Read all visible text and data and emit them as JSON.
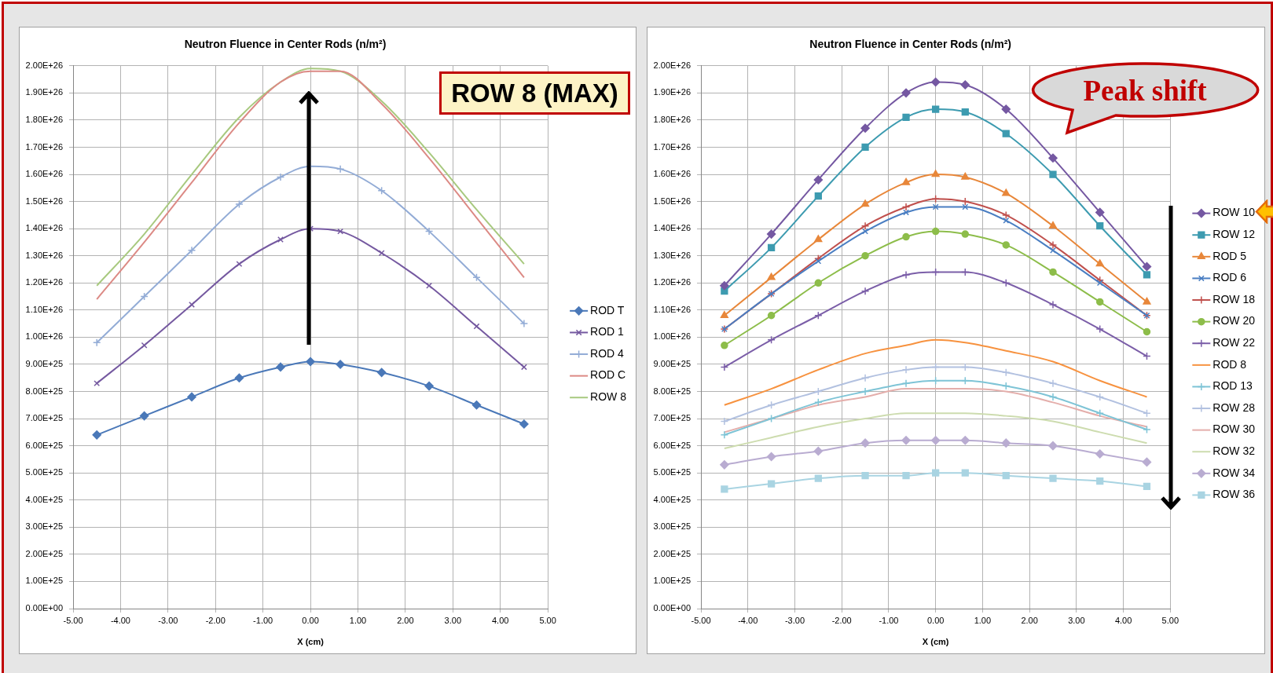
{
  "chart_data": [
    {
      "type": "line",
      "title": "Neutron Fluence in Center Rods (n/m²)",
      "xlabel": "X (cm)",
      "xlim": [
        -5,
        5
      ],
      "xticks": [
        {
          "value": -5,
          "label": "-5.00"
        },
        {
          "value": -4,
          "label": "-4.00"
        },
        {
          "value": -3,
          "label": "-3.00"
        },
        {
          "value": -2,
          "label": "-2.00"
        },
        {
          "value": -1,
          "label": "-1.00"
        },
        {
          "value": 0,
          "label": "0.00"
        },
        {
          "value": 1,
          "label": "1.00"
        },
        {
          "value": 2,
          "label": "2.00"
        },
        {
          "value": 3,
          "label": "3.00"
        },
        {
          "value": 4,
          "label": "4.00"
        },
        {
          "value": 5,
          "label": "5.00"
        }
      ],
      "ylim": [
        0,
        2e+26
      ],
      "yticks": [
        {
          "value": 0,
          "label": "0.00E+00"
        },
        {
          "value": 1e+25,
          "label": "1.00E+25"
        },
        {
          "value": 2e+25,
          "label": "2.00E+25"
        },
        {
          "value": 3e+25,
          "label": "3.00E+25"
        },
        {
          "value": 4e+25,
          "label": "4.00E+25"
        },
        {
          "value": 5e+25,
          "label": "5.00E+25"
        },
        {
          "value": 6e+25,
          "label": "6.00E+25"
        },
        {
          "value": 7e+25,
          "label": "7.00E+25"
        },
        {
          "value": 8e+25,
          "label": "8.00E+25"
        },
        {
          "value": 9e+25,
          "label": "9.00E+25"
        },
        {
          "value": 1e+26,
          "label": "1.00E+26"
        },
        {
          "value": 1.1e+26,
          "label": "1.10E+26"
        },
        {
          "value": 1.2e+26,
          "label": "1.20E+26"
        },
        {
          "value": 1.3e+26,
          "label": "1.30E+26"
        },
        {
          "value": 1.4e+26,
          "label": "1.40E+26"
        },
        {
          "value": 1.5e+26,
          "label": "1.50E+26"
        },
        {
          "value": 1.6e+26,
          "label": "1.60E+26"
        },
        {
          "value": 1.7e+26,
          "label": "1.70E+26"
        },
        {
          "value": 1.8e+26,
          "label": "1.80E+26"
        },
        {
          "value": 1.9e+26,
          "label": "1.90E+26"
        },
        {
          "value": 2e+26,
          "label": "2.00E+26"
        }
      ],
      "grid": true,
      "legend": "right",
      "annotations": [
        "ROW 8 (MAX)"
      ],
      "x": [
        -4.5,
        -3.5,
        -2.5,
        -1.5,
        -0.63,
        0,
        0.63,
        1.5,
        2.5,
        3.5,
        4.5
      ],
      "series": [
        {
          "name": "ROD T",
          "color": "#4a78b8",
          "marker": "diamond",
          "values": [
            6.4e+25,
            7.1e+25,
            7.8e+25,
            8.5e+25,
            8.9e+25,
            9.1e+25,
            9e+25,
            8.7e+25,
            8.2e+25,
            7.5e+25,
            6.8e+25
          ]
        },
        {
          "name": "ROD 1",
          "color": "#7559a0",
          "marker": "x",
          "values": [
            8.3e+25,
            9.7e+25,
            1.12e+26,
            1.27e+26,
            1.36e+26,
            1.4e+26,
            1.39e+26,
            1.31e+26,
            1.19e+26,
            1.04e+26,
            8.9e+25
          ]
        },
        {
          "name": "ROD 4",
          "color": "#93acd6",
          "marker": "cross",
          "values": [
            9.8e+25,
            1.15e+26,
            1.32e+26,
            1.49e+26,
            1.59e+26,
            1.63e+26,
            1.62e+26,
            1.54e+26,
            1.39e+26,
            1.22e+26,
            1.05e+26
          ]
        },
        {
          "name": "ROD C",
          "color": "#dc8a85",
          "marker": "none",
          "values": [
            1.14e+26,
            1.35e+26,
            1.57e+26,
            1.79e+26,
            1.94e+26,
            1.98e+26,
            1.98e+26,
            1.86e+26,
            1.66e+26,
            1.44e+26,
            1.22e+26
          ]
        },
        {
          "name": "ROW 8",
          "color": "#a8c97f",
          "marker": "none",
          "values": [
            1.19e+26,
            1.38e+26,
            1.6e+26,
            1.81e+26,
            1.94e+26,
            1.99e+26,
            1.98e+26,
            1.87e+26,
            1.68e+26,
            1.47e+26,
            1.27e+26
          ]
        }
      ]
    },
    {
      "type": "line",
      "title": "Neutron Fluence in Center Rods (n/m²)",
      "xlabel": "X (cm)",
      "xlim": [
        -5,
        5
      ],
      "xticks": [
        {
          "value": -5,
          "label": "-5.00"
        },
        {
          "value": -4,
          "label": "-4.00"
        },
        {
          "value": -3,
          "label": "-3.00"
        },
        {
          "value": -2,
          "label": "-2.00"
        },
        {
          "value": -1,
          "label": "-1.00"
        },
        {
          "value": 0,
          "label": "0.00"
        },
        {
          "value": 1,
          "label": "1.00"
        },
        {
          "value": 2,
          "label": "2.00"
        },
        {
          "value": 3,
          "label": "3.00"
        },
        {
          "value": 4,
          "label": "4.00"
        },
        {
          "value": 5,
          "label": "5.00"
        }
      ],
      "ylim": [
        0,
        2e+26
      ],
      "yticks": [
        {
          "value": 0,
          "label": "0.00E+00"
        },
        {
          "value": 1e+25,
          "label": "1.00E+25"
        },
        {
          "value": 2e+25,
          "label": "2.00E+25"
        },
        {
          "value": 3e+25,
          "label": "3.00E+25"
        },
        {
          "value": 4e+25,
          "label": "4.00E+25"
        },
        {
          "value": 5e+25,
          "label": "5.00E+25"
        },
        {
          "value": 6e+25,
          "label": "6.00E+25"
        },
        {
          "value": 7e+25,
          "label": "7.00E+25"
        },
        {
          "value": 8e+25,
          "label": "8.00E+25"
        },
        {
          "value": 9e+25,
          "label": "9.00E+25"
        },
        {
          "value": 1e+26,
          "label": "1.00E+26"
        },
        {
          "value": 1.1e+26,
          "label": "1.10E+26"
        },
        {
          "value": 1.2e+26,
          "label": "1.20E+26"
        },
        {
          "value": 1.3e+26,
          "label": "1.30E+26"
        },
        {
          "value": 1.4e+26,
          "label": "1.40E+26"
        },
        {
          "value": 1.5e+26,
          "label": "1.50E+26"
        },
        {
          "value": 1.6e+26,
          "label": "1.60E+26"
        },
        {
          "value": 1.7e+26,
          "label": "1.70E+26"
        },
        {
          "value": 1.8e+26,
          "label": "1.80E+26"
        },
        {
          "value": 1.9e+26,
          "label": "1.90E+26"
        },
        {
          "value": 2e+26,
          "label": "2.00E+26"
        }
      ],
      "grid": true,
      "legend": "right",
      "annotations": [
        "Peak shift"
      ],
      "x": [
        -4.5,
        -3.5,
        -2.5,
        -1.5,
        -0.63,
        0,
        0.63,
        1.5,
        2.5,
        3.5,
        4.5
      ],
      "series": [
        {
          "name": "ROW 10",
          "color": "#7558a2",
          "marker": "diamond",
          "values": [
            1.19e+26,
            1.38e+26,
            1.58e+26,
            1.77e+26,
            1.9e+26,
            1.94e+26,
            1.93e+26,
            1.84e+26,
            1.66e+26,
            1.46e+26,
            1.26e+26
          ]
        },
        {
          "name": "ROW 12",
          "color": "#3d9bb0",
          "marker": "square",
          "values": [
            1.17e+26,
            1.33e+26,
            1.52e+26,
            1.7e+26,
            1.81e+26,
            1.84e+26,
            1.83e+26,
            1.75e+26,
            1.6e+26,
            1.41e+26,
            1.23e+26
          ]
        },
        {
          "name": "ROD 5",
          "color": "#e8873a",
          "marker": "triangle",
          "values": [
            1.08e+26,
            1.22e+26,
            1.36e+26,
            1.49e+26,
            1.57e+26,
            1.6e+26,
            1.59e+26,
            1.53e+26,
            1.41e+26,
            1.27e+26,
            1.13e+26
          ]
        },
        {
          "name": "ROD 6",
          "color": "#4a7ec2",
          "marker": "x",
          "values": [
            1.03e+26,
            1.16e+26,
            1.28e+26,
            1.39e+26,
            1.46e+26,
            1.48e+26,
            1.48e+26,
            1.43e+26,
            1.32e+26,
            1.2e+26,
            1.08e+26
          ]
        },
        {
          "name": "ROW 18",
          "color": "#c0504d",
          "marker": "cross",
          "values": [
            1.03e+26,
            1.16e+26,
            1.29e+26,
            1.41e+26,
            1.48e+26,
            1.51e+26,
            1.5e+26,
            1.45e+26,
            1.34e+26,
            1.21e+26,
            1.08e+26
          ]
        },
        {
          "name": "ROW 20",
          "color": "#8dbd4a",
          "marker": "circle",
          "values": [
            9.7e+25,
            1.08e+26,
            1.2e+26,
            1.3e+26,
            1.37e+26,
            1.39e+26,
            1.38e+26,
            1.34e+26,
            1.24e+26,
            1.13e+26,
            1.02e+26
          ]
        },
        {
          "name": "ROW 22",
          "color": "#7b5ea8",
          "marker": "cross",
          "values": [
            8.9e+25,
            9.9e+25,
            1.08e+26,
            1.17e+26,
            1.23e+26,
            1.24e+26,
            1.24e+26,
            1.2e+26,
            1.12e+26,
            1.03e+26,
            9.3e+25
          ]
        },
        {
          "name": "ROD 8",
          "color": "#f7923f",
          "marker": "none",
          "values": [
            7.5e+25,
            8.1e+25,
            8.8e+25,
            9.4e+25,
            9.7e+25,
            9.9e+25,
            9.8e+25,
            9.5e+25,
            9.1e+25,
            8.4e+25,
            7.8e+25
          ]
        },
        {
          "name": "ROD 13",
          "color": "#7ec4d6",
          "marker": "cross",
          "values": [
            6.4e+25,
            7e+25,
            7.6e+25,
            8e+25,
            8.3e+25,
            8.4e+25,
            8.4e+25,
            8.2e+25,
            7.8e+25,
            7.2e+25,
            6.6e+25
          ]
        },
        {
          "name": "ROW 28",
          "color": "#b2c1e0",
          "marker": "cross",
          "values": [
            6.9e+25,
            7.5e+25,
            8e+25,
            8.5e+25,
            8.8e+25,
            8.9e+25,
            8.9e+25,
            8.7e+25,
            8.3e+25,
            7.8e+25,
            7.2e+25
          ]
        },
        {
          "name": "ROW 30",
          "color": "#e4aeab",
          "marker": "none",
          "values": [
            6.5e+25,
            7e+25,
            7.5e+25,
            7.8e+25,
            8.1e+25,
            8.1e+25,
            8.1e+25,
            8e+25,
            7.6e+25,
            7.1e+25,
            6.7e+25
          ]
        },
        {
          "name": "ROW 32",
          "color": "#cddcaf",
          "marker": "none",
          "values": [
            5.9e+25,
            6.3e+25,
            6.7e+25,
            7e+25,
            7.2e+25,
            7.2e+25,
            7.2e+25,
            7.1e+25,
            6.9e+25,
            6.5e+25,
            6.1e+25
          ]
        },
        {
          "name": "ROW 34",
          "color": "#b9acd1",
          "marker": "diamond",
          "values": [
            5.3e+25,
            5.6e+25,
            5.8e+25,
            6.1e+25,
            6.2e+25,
            6.2e+25,
            6.2e+25,
            6.1e+25,
            6e+25,
            5.7e+25,
            5.4e+25
          ]
        },
        {
          "name": "ROW 36",
          "color": "#a9d4e2",
          "marker": "square",
          "values": [
            4.4e+25,
            4.6e+25,
            4.8e+25,
            4.9e+25,
            4.9e+25,
            5e+25,
            5e+25,
            4.9e+25,
            4.8e+25,
            4.7e+25,
            4.5e+25
          ]
        }
      ]
    }
  ]
}
